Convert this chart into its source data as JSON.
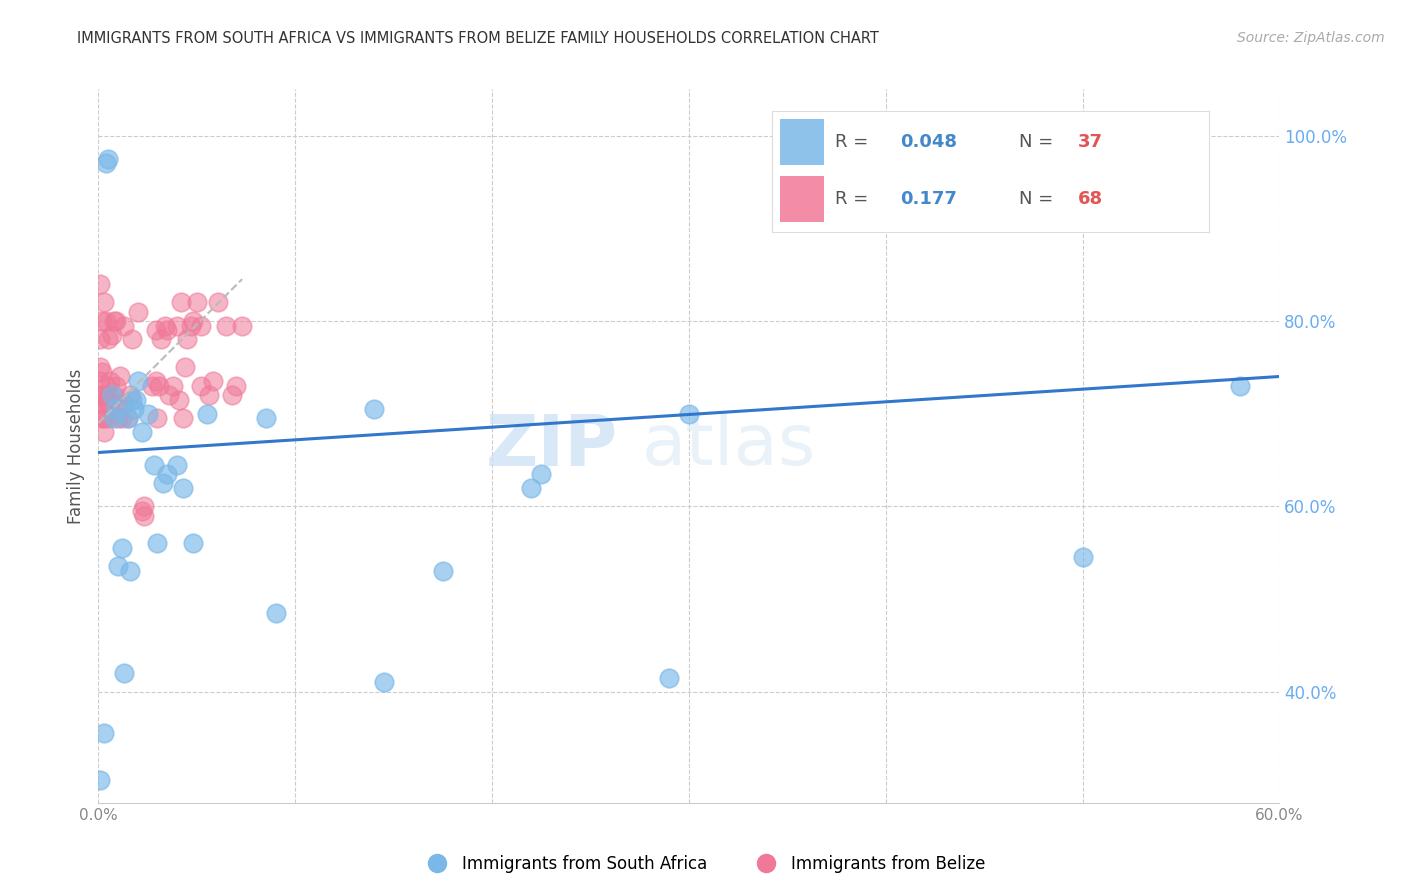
{
  "title": "IMMIGRANTS FROM SOUTH AFRICA VS IMMIGRANTS FROM BELIZE FAMILY HOUSEHOLDS CORRELATION CHART",
  "source": "Source: ZipAtlas.com",
  "ylabel": "Family Households",
  "xlim": [
    0.0,
    0.6
  ],
  "ylim": [
    0.28,
    1.05
  ],
  "yticks": [
    0.4,
    0.6,
    0.8,
    1.0
  ],
  "xticks": [
    0.0,
    0.1,
    0.2,
    0.3,
    0.4,
    0.5,
    0.6
  ],
  "color_sa": "#7ab8e8",
  "color_belize": "#f07898",
  "sa_x": [
    0.001,
    0.003,
    0.004,
    0.005,
    0.007,
    0.008,
    0.009,
    0.01,
    0.012,
    0.013,
    0.015,
    0.016,
    0.017,
    0.018,
    0.019,
    0.02,
    0.022,
    0.025,
    0.028,
    0.03,
    0.033,
    0.035,
    0.04,
    0.043,
    0.048,
    0.055,
    0.085,
    0.09,
    0.14,
    0.145,
    0.175,
    0.22,
    0.225,
    0.29,
    0.3,
    0.5,
    0.58
  ],
  "sa_y": [
    0.305,
    0.355,
    0.97,
    0.975,
    0.72,
    0.695,
    0.705,
    0.535,
    0.555,
    0.42,
    0.695,
    0.53,
    0.715,
    0.705,
    0.715,
    0.735,
    0.68,
    0.7,
    0.645,
    0.56,
    0.625,
    0.635,
    0.645,
    0.62,
    0.56,
    0.7,
    0.695,
    0.485,
    0.705,
    0.41,
    0.53,
    0.62,
    0.635,
    0.415,
    0.7,
    0.545,
    0.73
  ],
  "belize_x": [
    0.001,
    0.001,
    0.001,
    0.001,
    0.001,
    0.002,
    0.002,
    0.002,
    0.002,
    0.002,
    0.003,
    0.003,
    0.003,
    0.003,
    0.004,
    0.004,
    0.004,
    0.005,
    0.005,
    0.005,
    0.006,
    0.006,
    0.007,
    0.008,
    0.008,
    0.009,
    0.009,
    0.01,
    0.01,
    0.011,
    0.012,
    0.013,
    0.013,
    0.015,
    0.016,
    0.017,
    0.02,
    0.022,
    0.023,
    0.023,
    0.027,
    0.029,
    0.029,
    0.03,
    0.031,
    0.032,
    0.034,
    0.035,
    0.036,
    0.038,
    0.04,
    0.041,
    0.042,
    0.043,
    0.044,
    0.045,
    0.047,
    0.05,
    0.052,
    0.056,
    0.058,
    0.061,
    0.065,
    0.068,
    0.07,
    0.073,
    0.048,
    0.052
  ],
  "belize_y": [
    0.72,
    0.735,
    0.75,
    0.78,
    0.84,
    0.695,
    0.71,
    0.72,
    0.745,
    0.8,
    0.68,
    0.695,
    0.71,
    0.82,
    0.715,
    0.73,
    0.8,
    0.695,
    0.72,
    0.78,
    0.71,
    0.735,
    0.785,
    0.72,
    0.8,
    0.73,
    0.8,
    0.695,
    0.71,
    0.74,
    0.695,
    0.71,
    0.795,
    0.695,
    0.72,
    0.78,
    0.81,
    0.595,
    0.59,
    0.6,
    0.73,
    0.735,
    0.79,
    0.695,
    0.73,
    0.78,
    0.795,
    0.79,
    0.72,
    0.73,
    0.795,
    0.715,
    0.82,
    0.695,
    0.75,
    0.78,
    0.795,
    0.82,
    0.795,
    0.72,
    0.735,
    0.82,
    0.795,
    0.72,
    0.73,
    0.795,
    0.8,
    0.73
  ],
  "sa_trendline_x": [
    0.0,
    0.6
  ],
  "sa_trendline_y": [
    0.658,
    0.74
  ],
  "belize_trendline_x": [
    0.0,
    0.073
  ],
  "belize_trendline_y": [
    0.69,
    0.845
  ],
  "watermark_zip": "ZIP",
  "watermark_atlas": "atlas",
  "background_color": "#ffffff",
  "grid_color": "#cccccc",
  "tick_color_right": "#6aacf0",
  "tick_color_x": "#888888",
  "title_color": "#333333",
  "legend_r_color": "#4488cc",
  "legend_n_color": "#e05555",
  "legend_text_color": "#555555"
}
